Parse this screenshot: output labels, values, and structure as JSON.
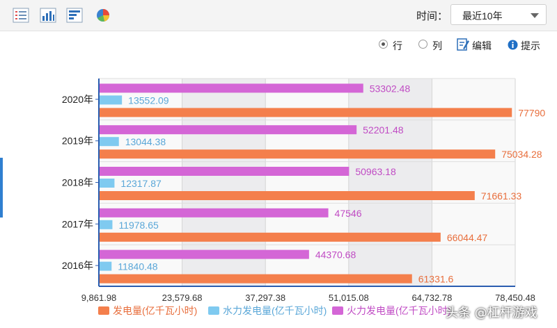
{
  "toolbar": {
    "icons": [
      "table-view-icon",
      "bar-chart-icon",
      "horizontal-bar-icon",
      "pie-chart-icon"
    ],
    "time_label": "时间：",
    "time_select_value": "最近10年"
  },
  "options": {
    "row_label": "行",
    "column_label": "列",
    "edit_label": "编辑",
    "tip_label": "提示",
    "selected": "row"
  },
  "watermark": "头条 @杠杆游戏",
  "chart_data": {
    "type": "bar",
    "orientation": "horizontal",
    "categories": [
      "2020年",
      "2019年",
      "2018年",
      "2017年",
      "2016年"
    ],
    "series": [
      {
        "name": "火力发电量(亿千瓦小时)",
        "color": "#d466d6",
        "label_color": "#c04bc4",
        "values": [
          53302.48,
          52201.48,
          50963.18,
          47546,
          44370.68
        ],
        "labels": [
          "53302.48",
          "52201.48",
          "50963.18",
          "47546",
          "44370.68"
        ]
      },
      {
        "name": "水力发电量(亿千瓦小时)",
        "color": "#7fcaf0",
        "label_color": "#5aa7d8",
        "values": [
          13552.09,
          13044.38,
          12317.87,
          11978.65,
          11840.48
        ],
        "labels": [
          "13552.09",
          "13044.38",
          "12317.87",
          "11978.65",
          "11840.48"
        ]
      },
      {
        "name": "发电量(亿千瓦小时)",
        "color": "#f47f4c",
        "label_color": "#e86e3c",
        "values": [
          77790,
          75034.28,
          71661.33,
          66044.47,
          61331.6
        ],
        "labels": [
          "77790",
          "75034.28",
          "71661.33",
          "66044.47",
          "61331.6"
        ]
      }
    ],
    "legend_order": [
      "发电量(亿千瓦小时)",
      "水力发电量(亿千瓦小时)",
      "火力发电量(亿千瓦小时)"
    ],
    "legend_position": "bottom",
    "x_ticks": [
      "9,861.98",
      "23,579.68",
      "37,297.38",
      "51,015.08",
      "64,732.78",
      "78,450.48"
    ],
    "xlim": [
      9861.98,
      78450.48
    ],
    "grid": true
  }
}
